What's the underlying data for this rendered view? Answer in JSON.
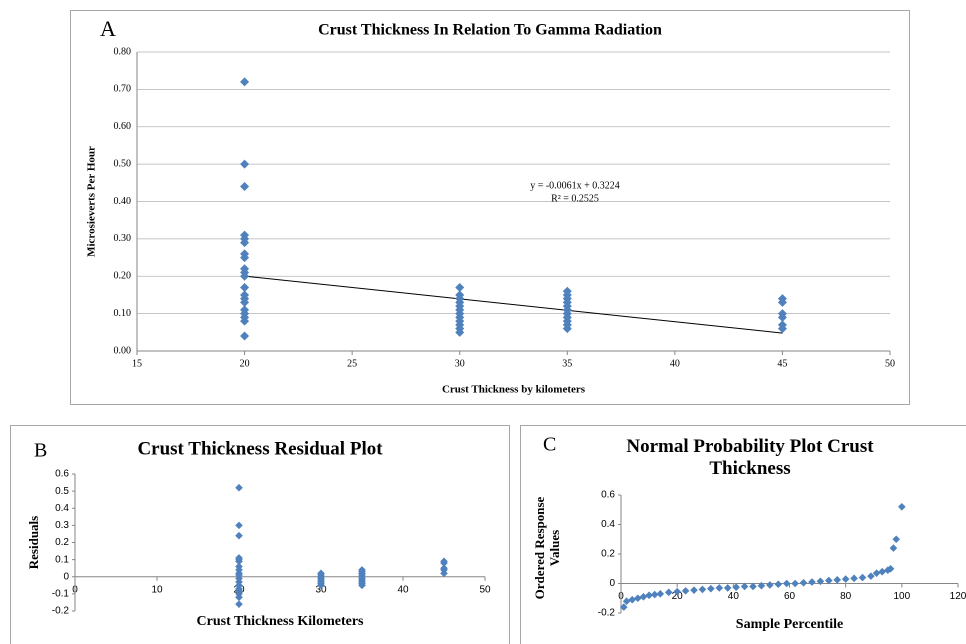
{
  "chart_data": [
    {
      "type": "scatter",
      "panel_label": "A",
      "title": "Crust Thickness In Relation To Gamma Radiation",
      "x_label": "Crust Thickness by kilometers",
      "y_label": "Microsieverts Per Hour",
      "x": [
        20,
        20,
        20,
        20,
        20,
        20,
        20,
        20,
        20,
        20,
        20,
        20,
        20,
        20,
        20,
        20,
        20,
        20,
        20,
        20,
        30,
        30,
        30,
        30,
        30,
        30,
        30,
        30,
        30,
        30,
        30,
        30,
        35,
        35,
        35,
        35,
        35,
        35,
        35,
        35,
        35,
        35,
        35,
        45,
        45,
        45,
        45,
        45,
        45
      ],
      "values": [
        0.72,
        0.5,
        0.44,
        0.31,
        0.3,
        0.29,
        0.26,
        0.25,
        0.22,
        0.21,
        0.2,
        0.17,
        0.15,
        0.14,
        0.13,
        0.11,
        0.1,
        0.09,
        0.08,
        0.04,
        0.17,
        0.15,
        0.14,
        0.13,
        0.12,
        0.11,
        0.1,
        0.09,
        0.08,
        0.07,
        0.06,
        0.05,
        0.16,
        0.15,
        0.14,
        0.13,
        0.12,
        0.11,
        0.1,
        0.09,
        0.08,
        0.07,
        0.06,
        0.14,
        0.13,
        0.1,
        0.09,
        0.07,
        0.06
      ],
      "color": "#4f81bd",
      "trendline": {
        "x": [
          20,
          45
        ],
        "values": [
          0.2004,
          0.0479
        ],
        "color": "#000000"
      },
      "equation": "y = -0.0061x + 0.3224",
      "r_squared": "R² = 0.2525",
      "xlim": [
        15,
        50
      ],
      "xticks": [
        15,
        20,
        25,
        30,
        35,
        40,
        45,
        50
      ],
      "ylim": [
        0,
        0.8
      ],
      "yticks": [
        {
          "value": 0,
          "label": "0.00"
        },
        {
          "value": 0.1,
          "label": "0.10"
        },
        {
          "value": 0.2,
          "label": "0.20"
        },
        {
          "value": 0.3,
          "label": "0.30"
        },
        {
          "value": 0.4,
          "label": "0.40"
        },
        {
          "value": 0.5,
          "label": "0.50"
        },
        {
          "value": 0.6,
          "label": "0.60"
        },
        {
          "value": 0.7,
          "label": "0.70"
        },
        {
          "value": 0.8,
          "label": "0.80"
        }
      ],
      "grid": true
    },
    {
      "type": "scatter",
      "panel_label": "B",
      "title": "Crust Thickness Residual Plot",
      "x_label": "Crust Thickness Kilometers",
      "y_label": "Residuals",
      "x": [
        20,
        20,
        20,
        20,
        20,
        20,
        20,
        20,
        20,
        20,
        20,
        20,
        20,
        20,
        20,
        20,
        20,
        20,
        30,
        30,
        30,
        30,
        30,
        30,
        30,
        30,
        35,
        35,
        35,
        35,
        35,
        35,
        35,
        35,
        35,
        35,
        45,
        45,
        45,
        45,
        45
      ],
      "values": [
        0.52,
        0.3,
        0.24,
        0.11,
        0.1,
        0.09,
        0.06,
        0.04,
        0.02,
        0.01,
        -0.01,
        -0.03,
        -0.05,
        -0.07,
        -0.08,
        -0.1,
        -0.12,
        -0.16,
        0.02,
        0.01,
        0,
        -0.01,
        -0.02,
        -0.03,
        -0.04,
        -0.05,
        0.04,
        0.03,
        0.02,
        0.01,
        0,
        -0.01,
        -0.02,
        -0.03,
        -0.04,
        -0.05,
        0.09,
        0.08,
        0.05,
        0.04,
        0.02
      ],
      "color": "#4f81bd",
      "xlim": [
        0,
        50
      ],
      "xticks": [
        0,
        10,
        20,
        30,
        40,
        50
      ],
      "ylim": [
        -0.2,
        0.6
      ],
      "yticks": [
        -0.2,
        -0.1,
        0,
        0.1,
        0.2,
        0.3,
        0.4,
        0.5,
        0.6
      ],
      "grid": false
    },
    {
      "type": "scatter",
      "panel_label": "C",
      "title": "Normal Probability Plot Crust Thickness",
      "x_label": "Sample Percentile",
      "y_label": "Ordered Response Values",
      "x": [
        1,
        2,
        4,
        6,
        8,
        10,
        12,
        14,
        17,
        20,
        23,
        26,
        29,
        32,
        35,
        38,
        41,
        44,
        47,
        50,
        53,
        56,
        59,
        62,
        65,
        68,
        71,
        74,
        77,
        80,
        83,
        86,
        89,
        91,
        93,
        95,
        96,
        97,
        98,
        100
      ],
      "values": [
        -0.16,
        -0.12,
        -0.11,
        -0.1,
        -0.09,
        -0.08,
        -0.075,
        -0.07,
        -0.06,
        -0.055,
        -0.05,
        -0.045,
        -0.04,
        -0.035,
        -0.03,
        -0.03,
        -0.025,
        -0.02,
        -0.02,
        -0.015,
        -0.01,
        -0.005,
        0,
        0,
        0.005,
        0.01,
        0.015,
        0.02,
        0.025,
        0.03,
        0.035,
        0.04,
        0.05,
        0.07,
        0.08,
        0.09,
        0.1,
        0.24,
        0.3,
        0.52
      ],
      "color": "#4f81bd",
      "xlim": [
        0,
        120
      ],
      "xticks": [
        0,
        20,
        40,
        60,
        80,
        100,
        120
      ],
      "ylim": [
        -0.2,
        0.6
      ],
      "yticks": [
        -0.2,
        0,
        0.2,
        0.4,
        0.6
      ],
      "grid": false
    }
  ]
}
